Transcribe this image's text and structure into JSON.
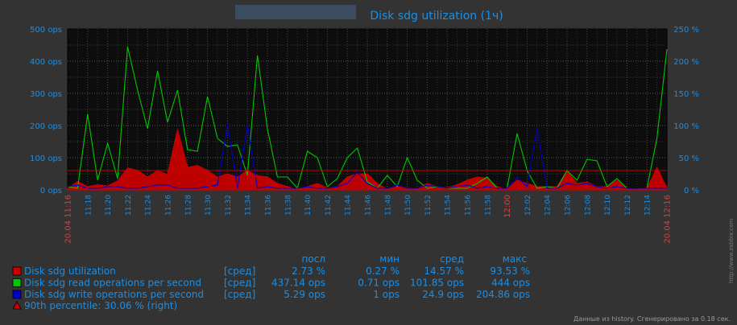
{
  "chart_data": {
    "type": "area",
    "title": "Disk sdg utilization (1ч)",
    "x": [
      "11:16",
      "11:17",
      "11:18",
      "11:19",
      "11:20",
      "11:21",
      "11:22",
      "11:23",
      "11:24",
      "11:25",
      "11:26",
      "11:27",
      "11:28",
      "11:29",
      "11:30",
      "11:31",
      "11:32",
      "11:33",
      "11:34",
      "11:35",
      "11:36",
      "11:37",
      "11:38",
      "11:39",
      "11:40",
      "11:41",
      "11:42",
      "11:43",
      "11:44",
      "11:45",
      "11:46",
      "11:47",
      "11:48",
      "11:49",
      "11:50",
      "11:51",
      "11:52",
      "11:53",
      "11:54",
      "11:55",
      "11:56",
      "11:57",
      "11:58",
      "11:59",
      "12:00",
      "12:01",
      "12:02",
      "12:03",
      "12:04",
      "12:05",
      "12:06",
      "12:07",
      "12:08",
      "12:09",
      "12:10",
      "12:11",
      "12:12",
      "12:13",
      "12:14",
      "12:15",
      "12:16"
    ],
    "x_ticks": [
      "11:18",
      "11:20",
      "11:22",
      "11:24",
      "11:26",
      "11:28",
      "11:30",
      "11:32",
      "11:34",
      "11:36",
      "11:38",
      "11:40",
      "11:42",
      "11:44",
      "11:46",
      "11:48",
      "11:50",
      "11:52",
      "11:54",
      "11:56",
      "11:58",
      "12:02",
      "12:04",
      "12:06",
      "12:08",
      "12:10",
      "12:12",
      "12:14"
    ],
    "x_major_ticks": [
      "20.04 11:16",
      "12:00",
      "20.04 12:16"
    ],
    "y_left": {
      "ticks": [
        "0 ops",
        "100 ops",
        "200 ops",
        "300 ops",
        "400 ops",
        "500 ops"
      ],
      "ylim": [
        0,
        500
      ]
    },
    "y_right": {
      "ticks": [
        "0 %",
        "50 %",
        "100 %",
        "150 %",
        "200 %",
        "250 %"
      ],
      "ylim": [
        0,
        250
      ]
    },
    "series": [
      {
        "name": "Disk sdg utilization",
        "axis": "right",
        "color": "#cc0000",
        "values": [
          2,
          13,
          5,
          8,
          6,
          14,
          34,
          30,
          20,
          30,
          24,
          94,
          35,
          38,
          30,
          20,
          25,
          20,
          30,
          22,
          20,
          10,
          5,
          1,
          5,
          10,
          3,
          5,
          20,
          25,
          25,
          10,
          1,
          5,
          3,
          2,
          10,
          5,
          3,
          8,
          15,
          20,
          18,
          5,
          1,
          15,
          10,
          5,
          5,
          5,
          30,
          10,
          12,
          5,
          5,
          15,
          1,
          1,
          2,
          35,
          3
        ]
      },
      {
        "name": "Disk sdg read operations per second",
        "axis": "left",
        "color": "#00c800",
        "values": [
          10,
          5,
          235,
          30,
          145,
          35,
          445,
          310,
          190,
          370,
          210,
          310,
          125,
          120,
          290,
          160,
          135,
          140,
          45,
          418,
          190,
          40,
          40,
          5,
          120,
          100,
          10,
          35,
          100,
          130,
          25,
          5,
          45,
          10,
          100,
          30,
          5,
          10,
          5,
          5,
          5,
          20,
          40,
          5,
          5,
          175,
          60,
          5,
          10,
          5,
          60,
          30,
          95,
          90,
          10,
          35,
          5,
          5,
          5,
          160,
          437
        ]
      },
      {
        "name": "Disk sdg write operations per second",
        "axis": "left",
        "color": "#0000c8",
        "values": [
          10,
          15,
          5,
          5,
          10,
          10,
          5,
          5,
          10,
          15,
          15,
          5,
          5,
          5,
          10,
          15,
          205,
          5,
          200,
          5,
          10,
          5,
          5,
          5,
          10,
          5,
          5,
          10,
          20,
          55,
          20,
          5,
          5,
          15,
          5,
          5,
          15,
          10,
          5,
          10,
          15,
          5,
          10,
          5,
          5,
          40,
          10,
          190,
          5,
          5,
          20,
          15,
          20,
          10,
          5,
          10,
          5,
          5,
          5,
          5,
          5
        ]
      }
    ],
    "percentile": {
      "name": "90th percentile: 30.06 % (right)",
      "value": 30.06,
      "axis": "right",
      "color": "#cc0000"
    },
    "grid": true
  },
  "legend": {
    "headers": {
      "last": "посл",
      "min": "мин",
      "avg": "сред",
      "max": "макс"
    },
    "rows": [
      {
        "name": "Disk sdg utilization",
        "func": "[сред]",
        "last": "2.73 %",
        "min": "0.27 %",
        "avg": "14.57 %",
        "max": "93.53 %",
        "color": "#cc0000"
      },
      {
        "name": "Disk sdg read operations per second",
        "func": "[сред]",
        "last": "437.14 ops",
        "min": "0.71 ops",
        "avg": "101.85 ops",
        "max": "444 ops",
        "color": "#00c800"
      },
      {
        "name": "Disk sdg write operations per second",
        "func": "[сред]",
        "last": "5.29 ops",
        "min": "1 ops",
        "avg": "24.9 ops",
        "max": "204.86 ops",
        "color": "#0000c8"
      }
    ],
    "percentile_label": "90th percentile: 30.06 % (right)"
  },
  "footer": "Данные из history. Сгенерировано за 0.18 сек.",
  "watermark": "http://www.zabbix.com"
}
